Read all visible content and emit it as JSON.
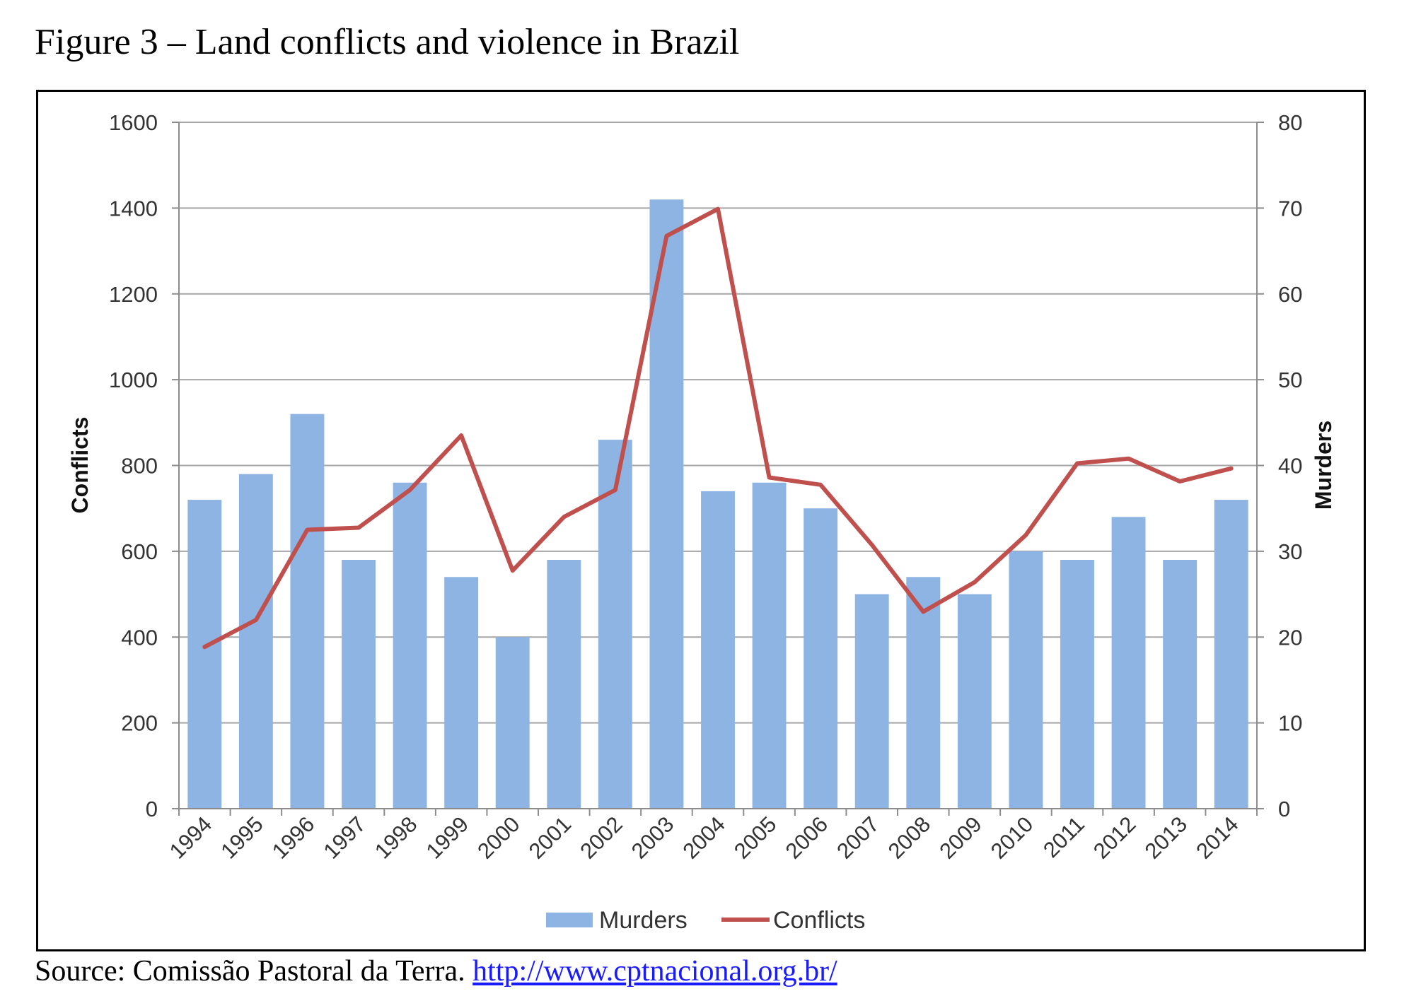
{
  "figure": {
    "title": "Figure 3 – Land conflicts and violence in Brazil",
    "source_prefix": "Source: Comissão Pastoral da Terra.",
    "source_link": "http://www.cptnacional.org.br/"
  },
  "chart_data": {
    "type": "bar",
    "categories": [
      "1994",
      "1995",
      "1996",
      "1997",
      "1998",
      "1999",
      "2000",
      "2001",
      "2002",
      "2003",
      "2004",
      "2005",
      "2006",
      "2007",
      "2008",
      "2009",
      "2010",
      "2011",
      "2012",
      "2013",
      "2014"
    ],
    "series": [
      {
        "name": "Murders",
        "type": "bar",
        "axis": "right",
        "color": "#8eb4e3",
        "values": [
          36,
          39,
          46,
          29,
          38,
          27,
          20,
          29,
          43,
          71,
          37,
          38,
          35,
          25,
          27,
          25,
          30,
          29,
          34,
          29,
          36
        ]
      },
      {
        "name": "Conflicts",
        "type": "line",
        "axis": "left",
        "color": "#c0504d",
        "values": [
          377,
          440,
          650,
          655,
          743,
          870,
          555,
          680,
          743,
          1335,
          1398,
          772,
          755,
          615,
          459,
          528,
          638,
          805,
          816,
          763,
          793
        ]
      }
    ],
    "ylabel": "Conflicts",
    "ylabel_right": "Murders",
    "ylim": [
      0,
      1600
    ],
    "yticks": [
      0,
      200,
      400,
      600,
      800,
      1000,
      1200,
      1400,
      1600
    ],
    "ylim_right": [
      0,
      80
    ],
    "yticks_right": [
      0,
      10,
      20,
      30,
      40,
      50,
      60,
      70,
      80
    ],
    "grid": true,
    "legend_position": "bottom"
  }
}
